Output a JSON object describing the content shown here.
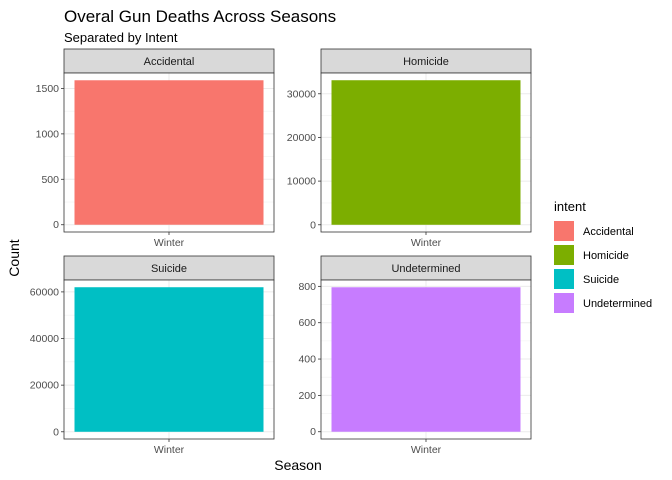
{
  "chart_data": {
    "type": "bar",
    "title": "Overal Gun Deaths Across Seasons",
    "subtitle": "Separated by Intent",
    "xlabel": "Season",
    "ylabel": "Count",
    "legend": {
      "title": "intent",
      "position": "right",
      "entries": [
        {
          "label": "Accidental",
          "color": "#F8766D"
        },
        {
          "label": "Homicide",
          "color": "#7CAE00"
        },
        {
          "label": "Suicide",
          "color": "#00BFC4"
        },
        {
          "label": "Undetermined",
          "color": "#C77CFF"
        }
      ]
    },
    "grid": true,
    "facets": [
      {
        "strip": "Accidental",
        "categories": [
          "Winter"
        ],
        "values": [
          1590
        ],
        "ylim": [
          -80,
          1670
        ],
        "yticks": [
          0,
          500,
          1000,
          1500
        ],
        "color": "#F8766D"
      },
      {
        "strip": "Homicide",
        "categories": [
          "Winter"
        ],
        "values": [
          33100
        ],
        "ylim": [
          -1655,
          34755
        ],
        "yticks": [
          0,
          10000,
          20000,
          30000
        ],
        "color": "#7CAE00"
      },
      {
        "strip": "Suicide",
        "categories": [
          "Winter"
        ],
        "values": [
          62000
        ],
        "ylim": [
          -3100,
          65100
        ],
        "yticks": [
          0,
          20000,
          40000,
          60000
        ],
        "color": "#00BFC4"
      },
      {
        "strip": "Undetermined",
        "categories": [
          "Winter"
        ],
        "values": [
          795
        ],
        "ylim": [
          -40,
          835
        ],
        "yticks": [
          0,
          200,
          400,
          600,
          800
        ],
        "color": "#C77CFF"
      }
    ]
  }
}
